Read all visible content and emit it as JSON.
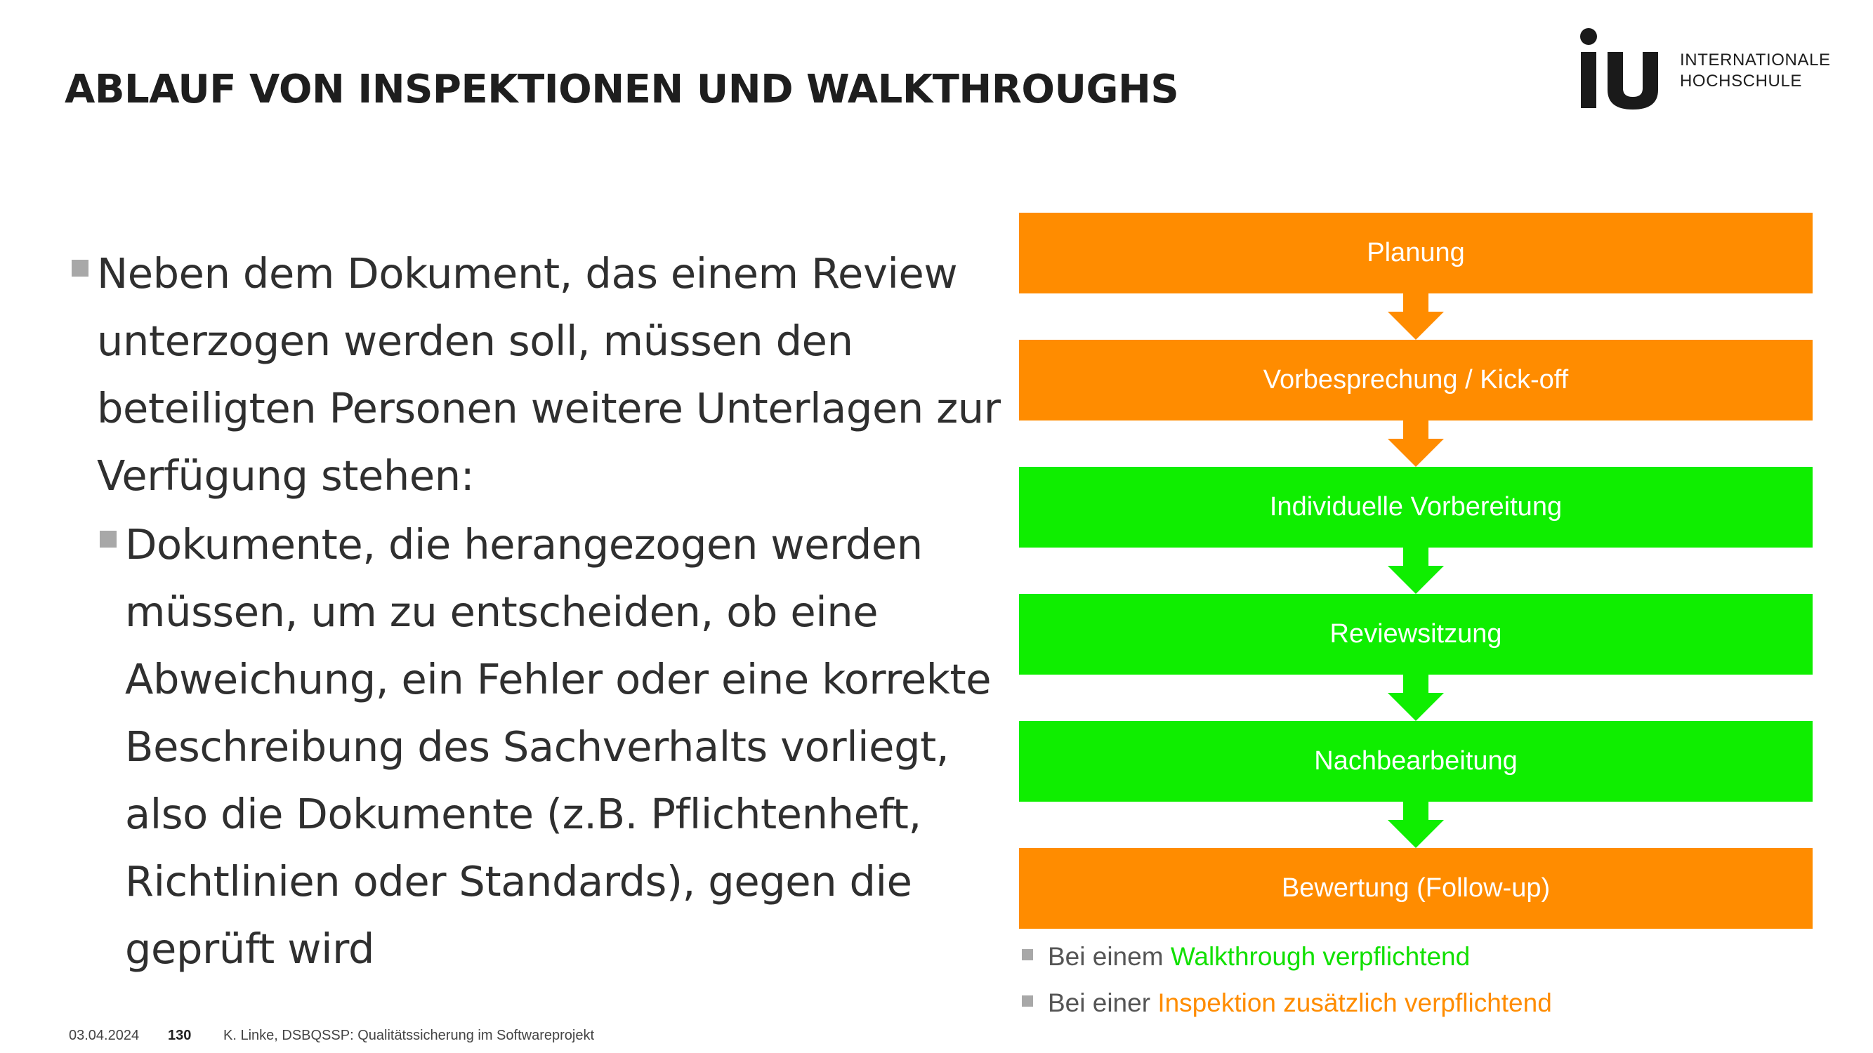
{
  "header": {
    "title": "ABLAUF VON INSPEKTIONEN UND WALKTHROUGHS",
    "logo": {
      "mark": "iu",
      "line1": "INTERNATIONALE",
      "line2": "HOCHSCHULE"
    }
  },
  "content": {
    "bullet1": "Neben dem Dokument, das einem Review unterzogen werden soll, müssen den beteiligten Personen weitere Unterlagen zur Verfügung stehen:",
    "bullet2": "Dokumente, die herangezogen werden müssen, um zu entscheiden, ob eine Abweichung, ein Fehler oder eine korrekte Beschreibung des Sachverhalts vorliegt, also die Dokumente (z.B. Pflichtenheft, Richtlinien oder Standards), gegen die geprüft wird"
  },
  "flow": {
    "steps": [
      {
        "label": "Planung",
        "color": "#ff8c00"
      },
      {
        "label": "Vorbesprechung / Kick-off",
        "color": "#ff8c00"
      },
      {
        "label": "Individuelle Vorbereitung",
        "color": "#0fee00"
      },
      {
        "label": "Reviewsitzung",
        "color": "#0fee00"
      },
      {
        "label": "Nachbearbeitung",
        "color": "#0fee00"
      },
      {
        "label": "Bewertung (Follow-up)",
        "color": "#ff8c00"
      }
    ]
  },
  "legend": {
    "walkthrough_prefix": "Bei einem ",
    "walkthrough_highlight": "Walkthrough verpflichtend",
    "inspection_prefix": "Bei einer ",
    "inspection_highlight": "Inspektion zusätzlich verpflichtend"
  },
  "footer": {
    "date": "03.04.2024",
    "page": "130",
    "author": "K. Linke, DSBQSSP: Qualitätssicherung im Softwareprojekt"
  },
  "colors": {
    "orange": "#ff8c00",
    "green": "#0fee00",
    "bullet": "#a8a8a8"
  }
}
